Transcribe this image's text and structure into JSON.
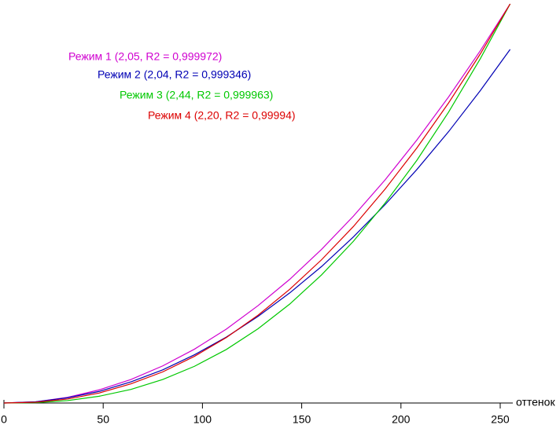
{
  "chart_data": {
    "type": "line",
    "x": [
      0,
      16,
      32,
      48,
      64,
      80,
      96,
      112,
      128,
      144,
      160,
      176,
      192,
      208,
      224,
      240,
      255
    ],
    "xlabel": "оттенок",
    "xlim": [
      0,
      255
    ],
    "xticks": [
      0,
      50,
      100,
      150,
      200,
      250
    ],
    "ylim": [
      0,
      1
    ],
    "series": [
      {
        "name": "Режим 1 (2,05, R2 = 0,999972)",
        "color": "#d000d0",
        "values": [
          0,
          0.003,
          0.014,
          0.033,
          0.059,
          0.093,
          0.135,
          0.185,
          0.244,
          0.31,
          0.385,
          0.468,
          0.559,
          0.659,
          0.767,
          0.883,
          1
        ]
      },
      {
        "name": "Режим 2 (2,04, R2 = 0,999346)",
        "color": "#0000b4",
        "values": [
          0,
          0.003,
          0.013,
          0.029,
          0.053,
          0.083,
          0.121,
          0.165,
          0.217,
          0.276,
          0.342,
          0.416,
          0.497,
          0.585,
          0.68,
          0.783,
          0.886
        ]
      },
      {
        "name": "Режим 3 (2,44, R2 = 0,999963)",
        "color": "#00c800",
        "values": [
          0,
          0.001,
          0.006,
          0.017,
          0.034,
          0.059,
          0.092,
          0.134,
          0.186,
          0.248,
          0.321,
          0.405,
          0.501,
          0.608,
          0.729,
          0.863,
          1
        ]
      },
      {
        "name": "Режим 4 (2,20, R2 = 0,99994)",
        "color": "#dc0000",
        "values": [
          0,
          0.002,
          0.01,
          0.025,
          0.048,
          0.078,
          0.117,
          0.164,
          0.22,
          0.285,
          0.359,
          0.442,
          0.536,
          0.639,
          0.752,
          0.875,
          1
        ]
      }
    ]
  }
}
